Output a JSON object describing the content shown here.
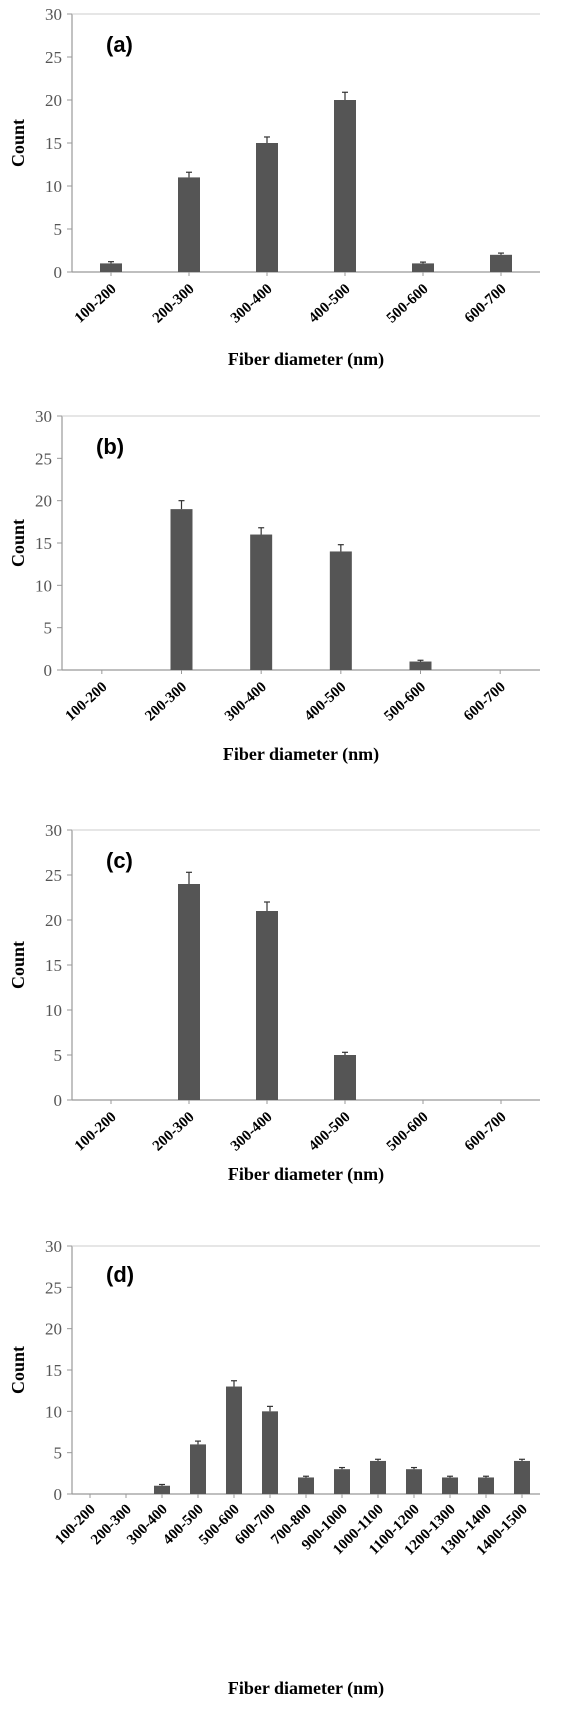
{
  "colors": {
    "bar": "#555555",
    "axis": "#999999",
    "errbar": "#333333"
  },
  "chart_data": [
    {
      "type": "bar",
      "panel_label": "(a)",
      "xlabel": "Fiber diameter (nm)",
      "ylabel": "Count",
      "ylim": [
        0,
        30
      ],
      "yticks": [
        "0",
        "5",
        "10",
        "15",
        "20",
        "25",
        "30"
      ],
      "categories": [
        "100-200",
        "200-300",
        "300-400",
        "400-500",
        "500-600",
        "600-700"
      ],
      "values": [
        1,
        11,
        15,
        20,
        1,
        2
      ],
      "errors": [
        0.2,
        0.6,
        0.7,
        0.9,
        0.15,
        0.2
      ]
    },
    {
      "type": "bar",
      "panel_label": "(b)",
      "xlabel": "Fiber diameter (nm)",
      "ylabel": "Count",
      "ylim": [
        0,
        30
      ],
      "yticks": [
        "0",
        "5",
        "10",
        "15",
        "20",
        "25",
        "30"
      ],
      "categories": [
        "100-200",
        "200-300",
        "300-400",
        "400-500",
        "500-600",
        "600-700"
      ],
      "values": [
        0,
        19,
        16,
        14,
        1,
        0
      ],
      "errors": [
        0,
        1.0,
        0.8,
        0.8,
        0.15,
        0
      ]
    },
    {
      "type": "bar",
      "panel_label": "(c)",
      "xlabel": "Fiber diameter (nm)",
      "ylabel": "Count",
      "ylim": [
        0,
        30
      ],
      "yticks": [
        "0",
        "5",
        "10",
        "15",
        "20",
        "25",
        "30"
      ],
      "categories": [
        "100-200",
        "200-300",
        "300-400",
        "400-500",
        "500-600",
        "600-700"
      ],
      "values": [
        0,
        24,
        21,
        5,
        0,
        0
      ],
      "errors": [
        0,
        1.3,
        1.0,
        0.3,
        0,
        0
      ]
    },
    {
      "type": "bar",
      "panel_label": "(d)",
      "xlabel": "Fiber diameter (nm)",
      "ylabel": "Count",
      "ylim": [
        0,
        30
      ],
      "yticks": [
        "0",
        "5",
        "10",
        "15",
        "20",
        "25",
        "30"
      ],
      "categories": [
        "100-200",
        "200-300",
        "300-400",
        "400-500",
        "500-600",
        "600-700",
        "700-800",
        "900-1000",
        "1000-1100",
        "1100-1200",
        "1200-1300",
        "1300-1400",
        "1400-1500"
      ],
      "values": [
        0,
        0,
        1,
        6,
        13,
        10,
        2,
        3,
        4,
        3,
        2,
        2,
        4
      ],
      "errors": [
        0,
        0,
        0.15,
        0.4,
        0.7,
        0.6,
        0.15,
        0.2,
        0.2,
        0.2,
        0.15,
        0.15,
        0.2
      ]
    }
  ]
}
